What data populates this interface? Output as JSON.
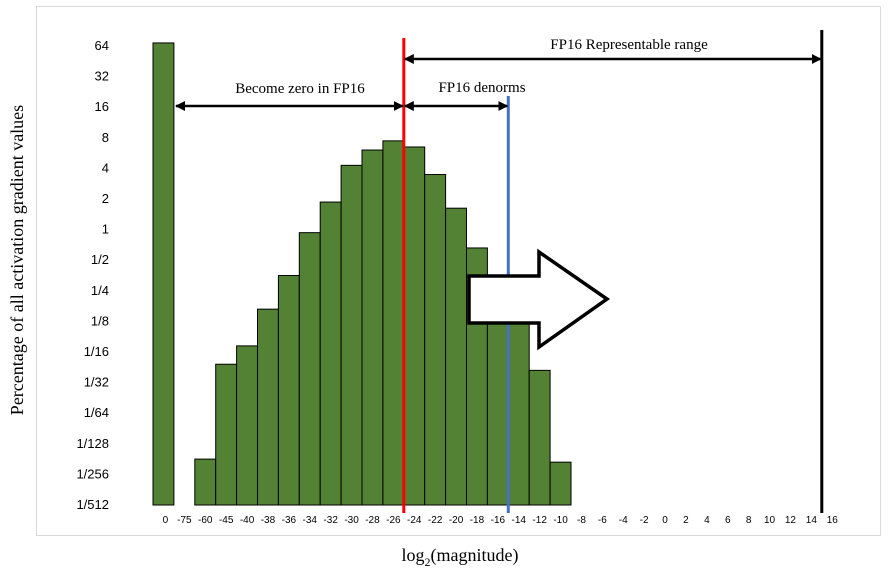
{
  "chart_data": {
    "type": "bar",
    "ylabel": "Percentage of all activation gradient values",
    "xlabel_prefix": "log",
    "xlabel_sub": "2",
    "xlabel_suffix": "(magnitude)",
    "y_scale": "log2",
    "y_ticks": [
      "64",
      "32",
      "16",
      "8",
      "4",
      "2",
      "1",
      "1/2",
      "1/4",
      "1/8",
      "1/16",
      "1/32",
      "1/64",
      "1/128",
      "1/256",
      "1/512"
    ],
    "x_ticks": [
      "0",
      "-75",
      "-60",
      "-45",
      "-40",
      "-38",
      "-36",
      "-34",
      "-32",
      "-30",
      "-28",
      "-26",
      "-24",
      "-22",
      "-20",
      "-18",
      "-16",
      "-14",
      "-12",
      "-10",
      "-8",
      "-6",
      "-4",
      "-2",
      "0",
      "2",
      "4",
      "6",
      "8",
      "10",
      "12",
      "14",
      "16"
    ],
    "categories": [
      "0",
      "-75",
      "-60",
      "-45",
      "-40",
      "-38",
      "-36",
      "-34",
      "-32",
      "-30",
      "-28",
      "-26",
      "-24",
      "-22",
      "-20",
      "-18",
      "-16",
      "-14",
      "-12",
      "-10",
      "-8",
      "-6",
      "-4",
      "-2",
      "0",
      "2",
      "4",
      "6",
      "8",
      "10",
      "12",
      "14",
      "16"
    ],
    "values_log2": [
      6.1,
      null,
      -7.5,
      -4.4,
      -3.8,
      -2.6,
      -1.5,
      -0.1,
      0.9,
      2.1,
      2.6,
      2.9,
      2.7,
      1.8,
      0.7,
      -0.6,
      -1.6,
      -2.9,
      -4.6,
      -7.6,
      null,
      null,
      null,
      null,
      null,
      null,
      null,
      null,
      null,
      null,
      null,
      null,
      null
    ],
    "grid": "none",
    "bar_color": "#548235",
    "bar_edge": "#000000",
    "vlines": [
      {
        "x": "-24",
        "color": "#ff0000"
      },
      {
        "x": "-14",
        "color": "#4472c4"
      },
      {
        "x": "15",
        "color": "#000000"
      }
    ],
    "annotations": {
      "zero": "Become zero in FP16",
      "denorm": "FP16 denorms",
      "range": "FP16 Representable range"
    }
  }
}
